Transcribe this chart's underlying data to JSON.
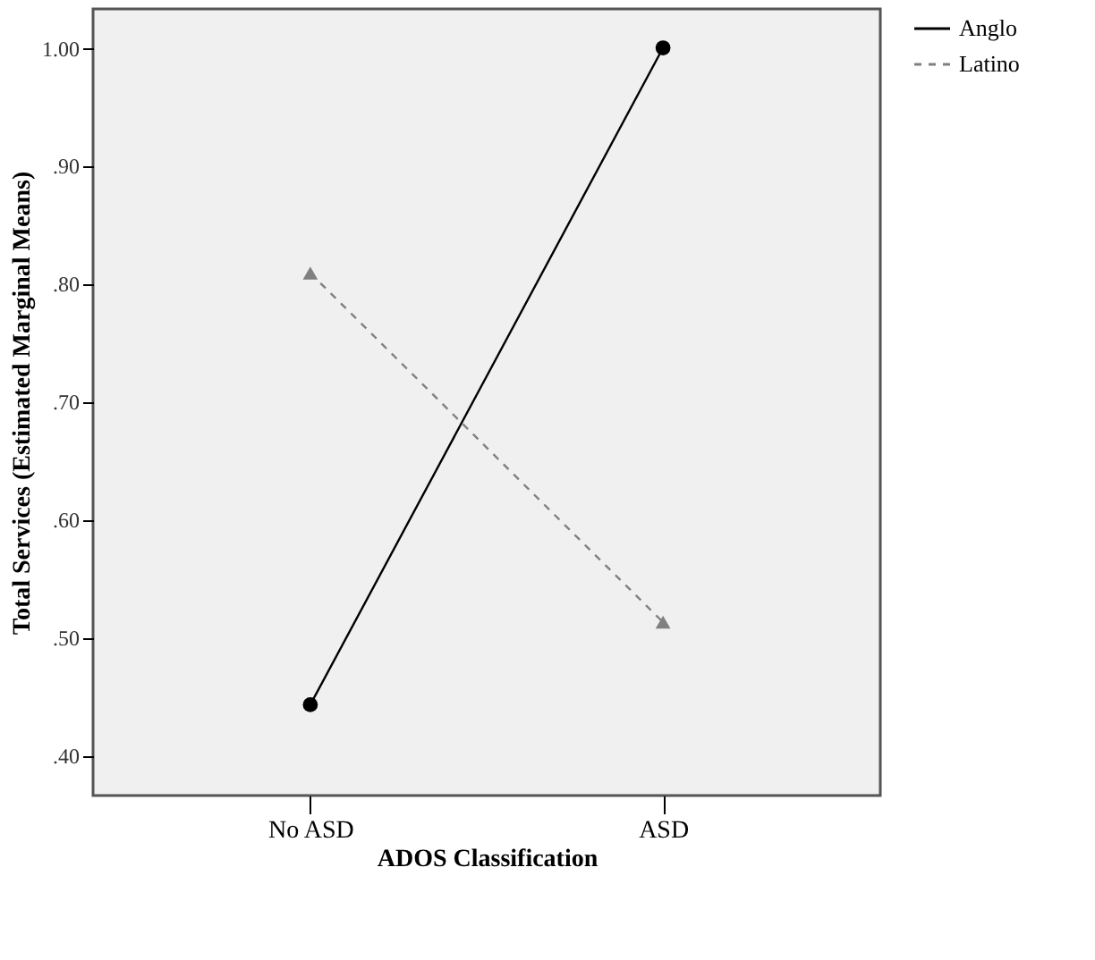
{
  "chart_data": {
    "type": "line",
    "xlabel": "ADOS Classification",
    "ylabel": "Total Services (Estimated Marginal Means)",
    "categories": [
      "No ASD",
      "ASD"
    ],
    "series": [
      {
        "name": "Anglo",
        "color": "#000000",
        "values": [
          0.443,
          1.0
        ],
        "marker": "circle",
        "line_style": "solid"
      },
      {
        "name": "Latino",
        "color": "#808080",
        "values": [
          0.809,
          0.513
        ],
        "marker": "triangle",
        "line_style": "dashed"
      }
    ],
    "ylim": [
      0.366,
      1.033
    ],
    "yticks": [
      {
        "value": 0.4,
        "label": ".40"
      },
      {
        "value": 0.5,
        "label": ".50"
      },
      {
        "value": 0.6,
        "label": ".60"
      },
      {
        "value": 0.7,
        "label": ".70"
      },
      {
        "value": 0.8,
        "label": ".80"
      },
      {
        "value": 0.9,
        "label": ".90"
      },
      {
        "value": 1.0,
        "label": "1.00"
      }
    ],
    "grid": false,
    "legend": "top right"
  }
}
